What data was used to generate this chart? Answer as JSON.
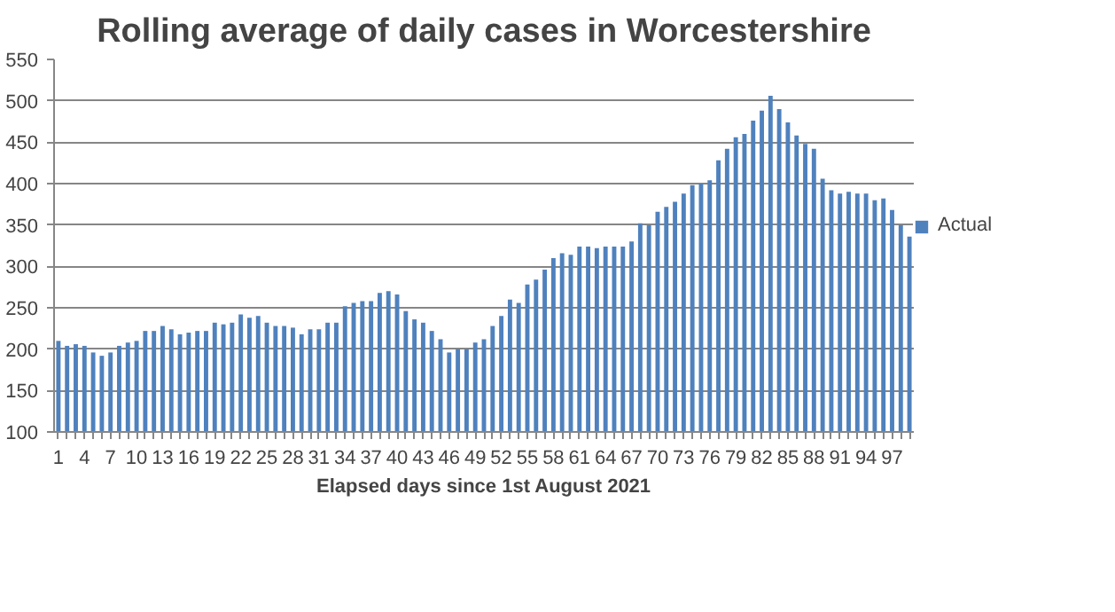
{
  "chart_data": {
    "type": "bar",
    "title": "Rolling average of daily cases in Worcestershire",
    "xlabel": "Elapsed days since 1st August 2021",
    "categories": [
      "1",
      null,
      null,
      "4",
      null,
      null,
      "7",
      null,
      null,
      "10",
      null,
      null,
      "13",
      null,
      null,
      "16",
      null,
      null,
      "19",
      null,
      null,
      "22",
      null,
      null,
      "25",
      null,
      null,
      "28",
      null,
      null,
      "31",
      null,
      null,
      "34",
      null,
      null,
      "37",
      null,
      null,
      "40",
      null,
      null,
      "43",
      null,
      null,
      "46",
      null,
      null,
      "49",
      null,
      null,
      "52",
      null,
      null,
      "55",
      null,
      null,
      "58",
      null,
      null,
      "61",
      null,
      null,
      "64",
      null,
      null,
      "67",
      null,
      null,
      "70",
      null,
      null,
      "73",
      null,
      null,
      "76",
      null,
      null,
      "79",
      null,
      null,
      "82",
      null,
      null,
      "85",
      null,
      null,
      "88",
      null,
      null,
      "91",
      null,
      null,
      "94",
      null,
      null,
      "97",
      null,
      null
    ],
    "series": [
      {
        "name": "Actual",
        "color": "#4f81bd",
        "values": [
          210,
          204,
          206,
          204,
          196,
          192,
          196,
          204,
          208,
          210,
          222,
          222,
          228,
          224,
          218,
          220,
          222,
          222,
          232,
          230,
          232,
          242,
          238,
          240,
          232,
          228,
          228,
          226,
          218,
          224,
          224,
          232,
          232,
          252,
          256,
          258,
          258,
          268,
          270,
          266,
          246,
          236,
          232,
          222,
          212,
          196,
          200,
          200,
          208,
          212,
          228,
          240,
          260,
          256,
          278,
          284,
          296,
          310,
          316,
          314,
          324,
          324,
          322,
          324,
          324,
          324,
          330,
          352,
          350,
          366,
          372,
          378,
          388,
          398,
          400,
          404,
          428,
          442,
          456,
          460,
          476,
          488,
          506,
          490,
          474,
          458,
          448,
          442,
          406,
          392,
          388,
          390,
          388,
          388,
          380,
          382,
          368,
          350,
          336
        ]
      }
    ],
    "ylim": [
      100,
      550
    ],
    "yticks": [
      100,
      150,
      200,
      250,
      300,
      350,
      400,
      450,
      500,
      550
    ],
    "grid": "y",
    "legend": "right"
  }
}
